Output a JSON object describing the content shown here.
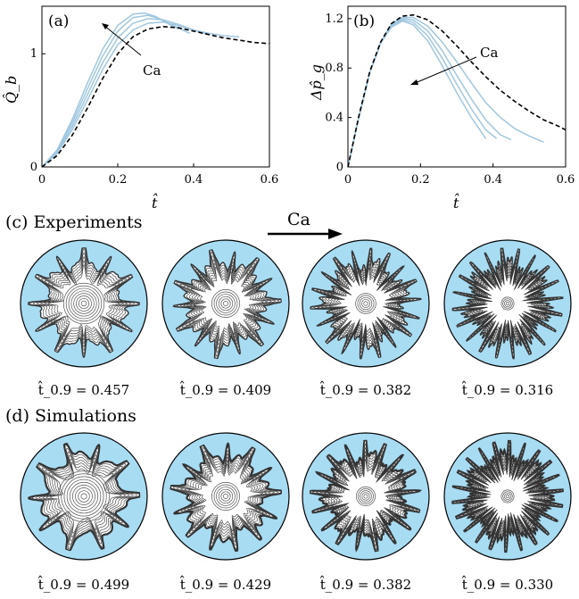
{
  "colors": {
    "curve": "#9fc7df",
    "dashed": "#000000",
    "disk_fill": "#a7dcf2",
    "finger_fill": "#ffffff",
    "outline": "#000000"
  },
  "chart_data": [
    {
      "type": "line",
      "panel_label": "(a)",
      "xlabel": "t̂",
      "ylabel": "Q̂_b",
      "xlim": [
        0,
        0.6
      ],
      "ylim": [
        0,
        1.42
      ],
      "xticks": [
        0,
        0.2,
        0.4,
        0.6
      ],
      "xtick_labels": [
        "0",
        "0.2",
        "0.4",
        "0.6"
      ],
      "yticks": [
        0,
        1
      ],
      "ytick_labels": [
        "0",
        "1"
      ],
      "annotation": "Ca",
      "series": [
        {
          "style": "solid",
          "x": [
            0,
            0.04,
            0.08,
            0.12,
            0.16,
            0.2,
            0.24,
            0.27,
            0.3,
            0.33,
            0.36
          ],
          "y": [
            0,
            0.15,
            0.42,
            0.74,
            1.04,
            1.25,
            1.35,
            1.36,
            1.33,
            1.27,
            1.22
          ]
        },
        {
          "style": "solid",
          "x": [
            0,
            0.04,
            0.08,
            0.12,
            0.16,
            0.2,
            0.24,
            0.28,
            0.31,
            0.34,
            0.39
          ],
          "y": [
            0,
            0.14,
            0.39,
            0.69,
            0.98,
            1.2,
            1.32,
            1.34,
            1.31,
            1.26,
            1.18
          ]
        },
        {
          "style": "solid",
          "x": [
            0,
            0.04,
            0.08,
            0.12,
            0.16,
            0.2,
            0.24,
            0.28,
            0.32,
            0.36,
            0.4,
            0.44
          ],
          "y": [
            0,
            0.13,
            0.36,
            0.64,
            0.92,
            1.14,
            1.27,
            1.31,
            1.3,
            1.26,
            1.21,
            1.17
          ]
        },
        {
          "style": "solid",
          "x": [
            0,
            0.04,
            0.08,
            0.12,
            0.16,
            0.2,
            0.24,
            0.28,
            0.32,
            0.36,
            0.4,
            0.44,
            0.48,
            0.52
          ],
          "y": [
            0,
            0.12,
            0.33,
            0.59,
            0.86,
            1.08,
            1.21,
            1.27,
            1.28,
            1.25,
            1.21,
            1.18,
            1.16,
            1.15
          ]
        },
        {
          "style": "dashed",
          "x": [
            0,
            0.04,
            0.08,
            0.12,
            0.16,
            0.2,
            0.24,
            0.28,
            0.32,
            0.36,
            0.4,
            0.44,
            0.48,
            0.52,
            0.56,
            0.6
          ],
          "y": [
            0,
            0.1,
            0.28,
            0.52,
            0.78,
            1.0,
            1.15,
            1.22,
            1.24,
            1.23,
            1.2,
            1.17,
            1.14,
            1.12,
            1.1,
            1.09
          ]
        }
      ]
    },
    {
      "type": "line",
      "panel_label": "(b)",
      "xlabel": "t̂",
      "ylabel": "Δp̂_g",
      "xlim": [
        0,
        0.6
      ],
      "ylim": [
        0,
        1.3
      ],
      "xticks": [
        0,
        0.2,
        0.4,
        0.6
      ],
      "xtick_labels": [
        "0",
        "0.2",
        "0.4",
        "0.6"
      ],
      "yticks": [
        0,
        0.4,
        0.8,
        1.2
      ],
      "ytick_labels": [
        "0",
        "0.4",
        "0.8",
        "1.2"
      ],
      "annotation": "Ca",
      "series": [
        {
          "style": "solid",
          "x": [
            0,
            0.03,
            0.06,
            0.09,
            0.12,
            0.15,
            0.18,
            0.22,
            0.26,
            0.3,
            0.34,
            0.38
          ],
          "y": [
            0,
            0.4,
            0.76,
            1.0,
            1.13,
            1.18,
            1.15,
            1.02,
            0.82,
            0.6,
            0.4,
            0.23
          ]
        },
        {
          "style": "solid",
          "x": [
            0,
            0.03,
            0.06,
            0.09,
            0.12,
            0.15,
            0.18,
            0.22,
            0.26,
            0.3,
            0.34,
            0.38,
            0.41
          ],
          "y": [
            0,
            0.4,
            0.76,
            1.0,
            1.14,
            1.19,
            1.17,
            1.06,
            0.88,
            0.67,
            0.47,
            0.3,
            0.23
          ]
        },
        {
          "style": "solid",
          "x": [
            0,
            0.03,
            0.06,
            0.09,
            0.12,
            0.15,
            0.18,
            0.22,
            0.26,
            0.3,
            0.34,
            0.38,
            0.42,
            0.45
          ],
          "y": [
            0,
            0.4,
            0.76,
            1.0,
            1.15,
            1.2,
            1.19,
            1.1,
            0.94,
            0.74,
            0.55,
            0.38,
            0.26,
            0.22
          ]
        },
        {
          "style": "solid",
          "x": [
            0,
            0.03,
            0.06,
            0.09,
            0.12,
            0.15,
            0.18,
            0.22,
            0.26,
            0.3,
            0.34,
            0.38,
            0.42,
            0.46,
            0.5,
            0.54
          ],
          "y": [
            0,
            0.4,
            0.76,
            1.0,
            1.16,
            1.21,
            1.21,
            1.14,
            1.01,
            0.85,
            0.68,
            0.52,
            0.4,
            0.31,
            0.25,
            0.2
          ]
        },
        {
          "style": "dashed",
          "x": [
            0,
            0.03,
            0.06,
            0.09,
            0.12,
            0.15,
            0.18,
            0.22,
            0.26,
            0.3,
            0.34,
            0.38,
            0.42,
            0.46,
            0.5,
            0.54,
            0.58,
            0.6
          ],
          "y": [
            0,
            0.41,
            0.77,
            1.01,
            1.16,
            1.22,
            1.23,
            1.19,
            1.1,
            0.98,
            0.85,
            0.73,
            0.62,
            0.53,
            0.45,
            0.38,
            0.33,
            0.3
          ]
        }
      ]
    }
  ],
  "section_c": {
    "label": "(c) Experiments",
    "arrow_label": "Ca",
    "captions": [
      "t̂_0.9 = 0.457",
      "t̂_0.9 = 0.409",
      "t̂_0.9 = 0.382",
      "t̂_0.9 = 0.316"
    ],
    "patterns": [
      {
        "fingers": 12,
        "branching": 0.2,
        "inner": 0.32,
        "rings": 8
      },
      {
        "fingers": 14,
        "branching": 0.4,
        "inner": 0.22,
        "rings": 6
      },
      {
        "fingers": 18,
        "branching": 0.6,
        "inner": 0.16,
        "rings": 5
      },
      {
        "fingers": 20,
        "branching": 0.9,
        "inner": 0.1,
        "rings": 4
      }
    ]
  },
  "section_d": {
    "label": "(d) Simulations",
    "captions": [
      "t̂_0.9 = 0.499",
      "t̂_0.9 = 0.429",
      "t̂_0.9 = 0.382",
      "t̂_0.9 = 0.330"
    ],
    "patterns": [
      {
        "fingers": 10,
        "branching": 0.1,
        "inner": 0.4,
        "rings": 9
      },
      {
        "fingers": 13,
        "branching": 0.3,
        "inner": 0.22,
        "rings": 6
      },
      {
        "fingers": 17,
        "branching": 0.5,
        "inner": 0.15,
        "rings": 5
      },
      {
        "fingers": 22,
        "branching": 0.8,
        "inner": 0.1,
        "rings": 4
      }
    ]
  }
}
